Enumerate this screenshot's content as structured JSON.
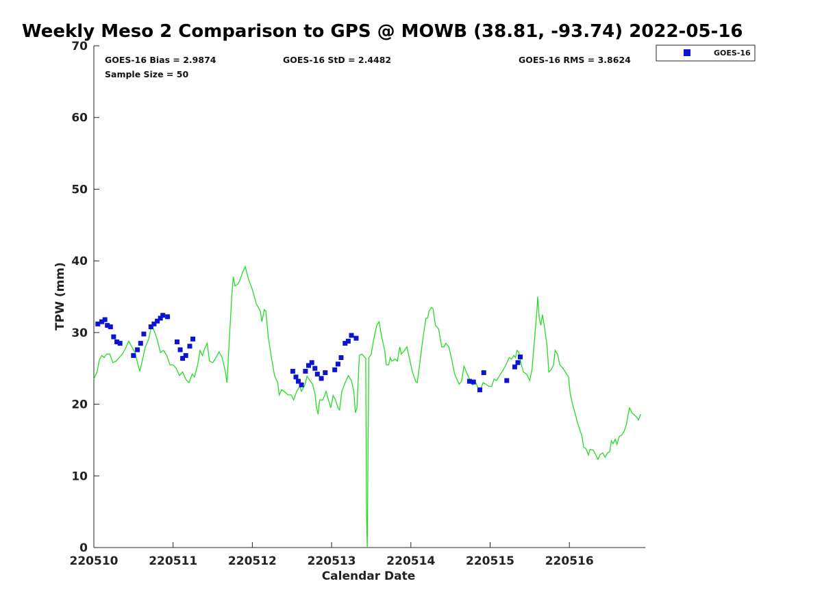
{
  "chart_data": {
    "type": "scatter",
    "title": "Weekly Meso 2 Comparison to GPS @ MOWB (38.81, -93.74) 2022-05-16",
    "xlabel": "Calendar Date",
    "ylabel": "TPW (mm)",
    "x_tick_labels": [
      "220510",
      "220511",
      "220512",
      "220513",
      "220514",
      "220515",
      "220516"
    ],
    "y_ticks": [
      0,
      10,
      20,
      30,
      40,
      50,
      60,
      70
    ],
    "xlim": [
      0,
      6.95
    ],
    "ylim": [
      0,
      70
    ],
    "x_unit_note": "x values in days since 220510 00Z",
    "stats": {
      "bias": "GOES-16 Bias = 2.9874",
      "std": "GOES-16 StD = 2.4482",
      "rms": "GOES-16 RMS = 3.8624",
      "sample_size": "Sample Size = 50"
    },
    "legend": {
      "placement": "top-right",
      "entries": [
        {
          "name": "GOES-16",
          "color": "#0a14d2",
          "marker": "square"
        }
      ]
    },
    "series": [
      {
        "name": "GOES-16",
        "kind": "scatter",
        "color": "#0a14d2",
        "points": [
          [
            0.05,
            31.2
          ],
          [
            0.1,
            31.5
          ],
          [
            0.14,
            31.8
          ],
          [
            0.17,
            31.0
          ],
          [
            0.21,
            30.8
          ],
          [
            0.25,
            29.4
          ],
          [
            0.29,
            28.7
          ],
          [
            0.33,
            28.5
          ],
          [
            0.5,
            26.8
          ],
          [
            0.55,
            27.6
          ],
          [
            0.59,
            28.5
          ],
          [
            0.63,
            29.8
          ],
          [
            0.72,
            30.8
          ],
          [
            0.76,
            31.2
          ],
          [
            0.8,
            31.6
          ],
          [
            0.84,
            32.0
          ],
          [
            0.87,
            32.4
          ],
          [
            0.93,
            32.2
          ],
          [
            1.05,
            28.7
          ],
          [
            1.09,
            27.6
          ],
          [
            1.12,
            26.4
          ],
          [
            1.16,
            26.8
          ],
          [
            1.21,
            28.1
          ],
          [
            1.25,
            29.1
          ],
          [
            2.51,
            24.6
          ],
          [
            2.55,
            23.8
          ],
          [
            2.58,
            23.2
          ],
          [
            2.62,
            22.7
          ],
          [
            2.67,
            24.6
          ],
          [
            2.71,
            25.4
          ],
          [
            2.75,
            25.8
          ],
          [
            2.79,
            25.0
          ],
          [
            2.82,
            24.2
          ],
          [
            2.87,
            23.6
          ],
          [
            2.92,
            24.4
          ],
          [
            3.04,
            24.8
          ],
          [
            3.08,
            25.6
          ],
          [
            3.12,
            26.5
          ],
          [
            3.17,
            28.5
          ],
          [
            3.21,
            28.8
          ],
          [
            3.25,
            29.6
          ],
          [
            3.31,
            29.2
          ],
          [
            4.74,
            23.2
          ],
          [
            4.79,
            23.1
          ],
          [
            4.87,
            22.0
          ],
          [
            4.92,
            24.4
          ],
          [
            5.21,
            23.3
          ],
          [
            5.31,
            25.2
          ],
          [
            5.35,
            25.8
          ],
          [
            5.38,
            26.6
          ]
        ]
      },
      {
        "name": "GPS",
        "kind": "line",
        "color": "#22dd22",
        "points": [
          [
            0.0,
            23.5
          ],
          [
            0.04,
            24.5
          ],
          [
            0.07,
            26.2
          ],
          [
            0.1,
            26.8
          ],
          [
            0.13,
            26.5
          ],
          [
            0.16,
            27.0
          ],
          [
            0.2,
            27.0
          ],
          [
            0.24,
            25.8
          ],
          [
            0.28,
            26.0
          ],
          [
            0.32,
            26.5
          ],
          [
            0.36,
            27.0
          ],
          [
            0.4,
            27.8
          ],
          [
            0.44,
            28.8
          ],
          [
            0.48,
            28.0
          ],
          [
            0.52,
            27.2
          ],
          [
            0.55,
            25.8
          ],
          [
            0.58,
            24.6
          ],
          [
            0.61,
            26.0
          ],
          [
            0.65,
            28.0
          ],
          [
            0.69,
            29.0
          ],
          [
            0.73,
            31.0
          ],
          [
            0.77,
            30.0
          ],
          [
            0.8,
            29.0
          ],
          [
            0.84,
            27.2
          ],
          [
            0.88,
            27.5
          ],
          [
            0.92,
            26.8
          ],
          [
            0.96,
            25.5
          ],
          [
            1.0,
            25.5
          ],
          [
            1.04,
            25.0
          ],
          [
            1.08,
            24.0
          ],
          [
            1.12,
            24.5
          ],
          [
            1.16,
            23.5
          ],
          [
            1.2,
            23.0
          ],
          [
            1.24,
            24.2
          ],
          [
            1.27,
            23.8
          ],
          [
            1.31,
            25.5
          ],
          [
            1.34,
            27.5
          ],
          [
            1.37,
            26.8
          ],
          [
            1.4,
            27.8
          ],
          [
            1.43,
            28.5
          ],
          [
            1.46,
            26.0
          ],
          [
            1.5,
            25.8
          ],
          [
            1.54,
            26.5
          ],
          [
            1.58,
            27.3
          ],
          [
            1.62,
            26.5
          ],
          [
            1.66,
            24.5
          ],
          [
            1.68,
            23.0
          ],
          [
            1.71,
            29.0
          ],
          [
            1.74,
            35.0
          ],
          [
            1.76,
            37.8
          ],
          [
            1.78,
            36.5
          ],
          [
            1.82,
            36.8
          ],
          [
            1.85,
            37.5
          ],
          [
            1.88,
            38.5
          ],
          [
            1.91,
            39.2
          ],
          [
            1.95,
            37.5
          ],
          [
            2.0,
            36.0
          ],
          [
            2.05,
            34.0
          ],
          [
            2.1,
            33.0
          ],
          [
            2.12,
            31.5
          ],
          [
            2.15,
            33.2
          ],
          [
            2.17,
            33.0
          ],
          [
            2.2,
            29.5
          ],
          [
            2.24,
            26.5
          ],
          [
            2.28,
            24.0
          ],
          [
            2.32,
            23.0
          ],
          [
            2.34,
            21.3
          ],
          [
            2.37,
            22.0
          ],
          [
            2.4,
            21.8
          ],
          [
            2.45,
            21.3
          ],
          [
            2.49,
            21.3
          ],
          [
            2.52,
            20.6
          ],
          [
            2.56,
            21.8
          ],
          [
            2.6,
            22.5
          ],
          [
            2.62,
            21.8
          ],
          [
            2.66,
            22.6
          ],
          [
            2.69,
            23.9
          ],
          [
            2.72,
            23.4
          ],
          [
            2.76,
            22.8
          ],
          [
            2.79,
            21.5
          ],
          [
            2.81,
            19.5
          ],
          [
            2.83,
            18.6
          ],
          [
            2.85,
            20.6
          ],
          [
            2.89,
            20.6
          ],
          [
            2.93,
            21.8
          ],
          [
            2.96,
            20.6
          ],
          [
            2.99,
            19.5
          ],
          [
            3.02,
            21.2
          ],
          [
            3.05,
            20.6
          ],
          [
            3.08,
            19.5
          ],
          [
            3.1,
            19.2
          ],
          [
            3.13,
            21.8
          ],
          [
            3.17,
            23.0
          ],
          [
            3.21,
            24.0
          ],
          [
            3.25,
            23.3
          ],
          [
            3.28,
            21.8
          ],
          [
            3.3,
            18.8
          ],
          [
            3.32,
            19.5
          ],
          [
            3.35,
            26.8
          ],
          [
            3.38,
            27.0
          ],
          [
            3.43,
            26.4
          ],
          [
            3.44,
            5.0
          ],
          [
            3.45,
            0.0
          ],
          [
            3.46,
            14.0
          ],
          [
            3.47,
            26.5
          ],
          [
            3.5,
            27.0
          ],
          [
            3.53,
            29.0
          ],
          [
            3.57,
            31.0
          ],
          [
            3.6,
            31.5
          ],
          [
            3.63,
            29.5
          ],
          [
            3.67,
            27.5
          ],
          [
            3.69,
            25.5
          ],
          [
            3.72,
            25.5
          ],
          [
            3.74,
            26.5
          ],
          [
            3.76,
            26.0
          ],
          [
            3.8,
            26.3
          ],
          [
            3.83,
            26.0
          ],
          [
            3.86,
            28.0
          ],
          [
            3.88,
            27.0
          ],
          [
            3.92,
            27.5
          ],
          [
            3.95,
            28.0
          ],
          [
            3.98,
            26.5
          ],
          [
            4.02,
            24.5
          ],
          [
            4.06,
            23.2
          ],
          [
            4.08,
            23.0
          ],
          [
            4.11,
            25.5
          ],
          [
            4.15,
            29.0
          ],
          [
            4.19,
            32.0
          ],
          [
            4.21,
            32.0
          ],
          [
            4.23,
            33.0
          ],
          [
            4.26,
            33.5
          ],
          [
            4.28,
            33.3
          ],
          [
            4.31,
            31.0
          ],
          [
            4.35,
            30.5
          ],
          [
            4.39,
            28.0
          ],
          [
            4.42,
            28.0
          ],
          [
            4.44,
            28.5
          ],
          [
            4.48,
            28.0
          ],
          [
            4.52,
            26.0
          ],
          [
            4.55,
            24.3
          ],
          [
            4.58,
            23.5
          ],
          [
            4.61,
            22.8
          ],
          [
            4.64,
            23.2
          ],
          [
            4.67,
            25.3
          ],
          [
            4.7,
            24.5
          ],
          [
            4.74,
            23.5
          ],
          [
            4.78,
            22.7
          ],
          [
            4.82,
            23.0
          ],
          [
            4.85,
            22.2
          ],
          [
            4.88,
            22.0
          ],
          [
            4.91,
            23.0
          ],
          [
            4.95,
            22.8
          ],
          [
            4.98,
            22.5
          ],
          [
            5.02,
            22.5
          ],
          [
            5.05,
            23.5
          ],
          [
            5.08,
            23.3
          ],
          [
            5.12,
            24.0
          ],
          [
            5.16,
            24.7
          ],
          [
            5.2,
            25.5
          ],
          [
            5.24,
            26.5
          ],
          [
            5.27,
            26.3
          ],
          [
            5.3,
            26.8
          ],
          [
            5.32,
            26.5
          ],
          [
            5.34,
            27.5
          ],
          [
            5.36,
            27.3
          ],
          [
            5.39,
            25.7
          ],
          [
            5.42,
            24.5
          ],
          [
            5.46,
            24.2
          ],
          [
            5.5,
            23.3
          ],
          [
            5.53,
            25.0
          ],
          [
            5.56,
            29.0
          ],
          [
            5.59,
            33.0
          ],
          [
            5.6,
            35.0
          ],
          [
            5.62,
            32.0
          ],
          [
            5.64,
            31.0
          ],
          [
            5.66,
            32.5
          ],
          [
            5.69,
            30.5
          ],
          [
            5.72,
            28.0
          ],
          [
            5.74,
            24.5
          ],
          [
            5.77,
            24.8
          ],
          [
            5.8,
            25.5
          ],
          [
            5.82,
            27.5
          ],
          [
            5.85,
            27.0
          ],
          [
            5.88,
            25.5
          ],
          [
            5.92,
            25.0
          ],
          [
            5.96,
            24.3
          ],
          [
            5.99,
            23.8
          ],
          [
            6.01,
            21.5
          ],
          [
            6.04,
            20.0
          ],
          [
            6.07,
            18.8
          ],
          [
            6.1,
            17.5
          ],
          [
            6.13,
            16.5
          ],
          [
            6.16,
            15.5
          ],
          [
            6.18,
            14.0
          ],
          [
            6.21,
            13.8
          ],
          [
            6.24,
            12.9
          ],
          [
            6.26,
            13.7
          ],
          [
            6.3,
            13.6
          ],
          [
            6.33,
            13.0
          ],
          [
            6.36,
            12.3
          ],
          [
            6.39,
            13.0
          ],
          [
            6.42,
            13.2
          ],
          [
            6.45,
            12.6
          ],
          [
            6.48,
            13.2
          ],
          [
            6.51,
            13.4
          ],
          [
            6.53,
            14.9
          ],
          [
            6.55,
            14.5
          ],
          [
            6.58,
            15.1
          ],
          [
            6.6,
            14.4
          ],
          [
            6.63,
            15.5
          ],
          [
            6.66,
            15.7
          ],
          [
            6.69,
            16.2
          ],
          [
            6.72,
            17.2
          ],
          [
            6.74,
            18.5
          ],
          [
            6.76,
            19.5
          ],
          [
            6.79,
            18.8
          ],
          [
            6.82,
            18.5
          ],
          [
            6.85,
            18.2
          ],
          [
            6.87,
            17.8
          ],
          [
            6.9,
            18.6
          ]
        ]
      }
    ]
  }
}
